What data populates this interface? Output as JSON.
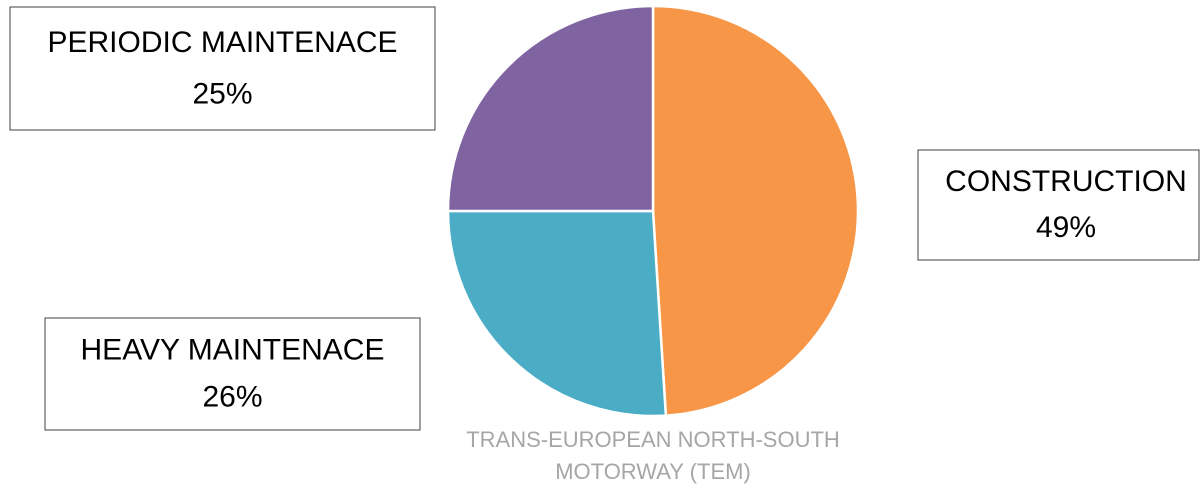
{
  "chart_data": {
    "type": "pie",
    "title": "TRANS-EUROPEAN NORTH-SOUTH MOTORWAY (TEM)",
    "categories": [
      "CONSTRUCTION",
      "HEAVY MAINTENACE",
      "PERIODIC MAINTENACE"
    ],
    "values": [
      49,
      26,
      25
    ],
    "value_labels": [
      "49%",
      "26%",
      "25%"
    ],
    "colors": [
      "#f79646",
      "#4bacc6",
      "#8064a2"
    ]
  }
}
